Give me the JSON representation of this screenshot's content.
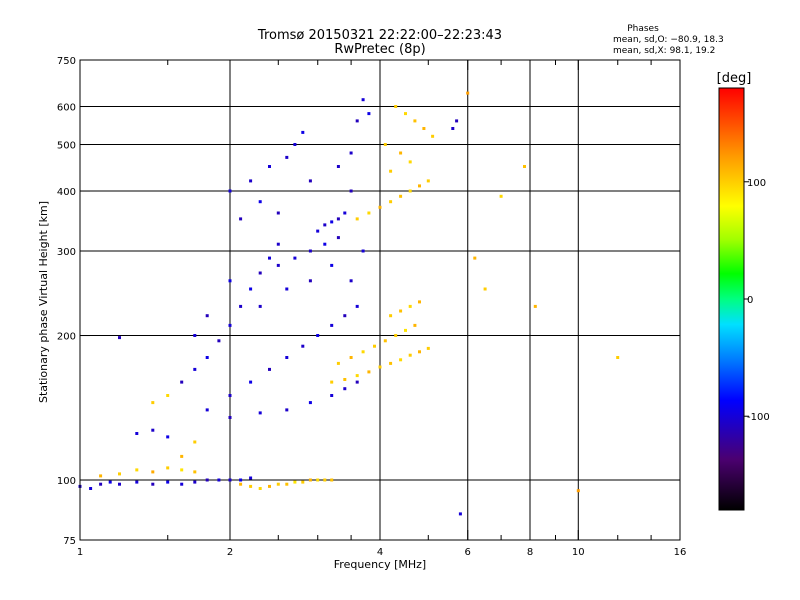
{
  "chart_data": {
    "type": "scatter",
    "title": "Tromsø 20150321 22:22:00–22:23:43",
    "subtitle": "RwPretec (8p)",
    "xlabel": "Frequency [MHz]",
    "ylabel": "Stationary phase Virtual Height [km]",
    "x_scale": "log",
    "y_scale": "log",
    "xlim": [
      1,
      16
    ],
    "ylim": [
      75,
      750
    ],
    "grid": true,
    "x_ticks": [
      1,
      2,
      4,
      6,
      8,
      10,
      16
    ],
    "x_minor_ticks": [
      1.5,
      2.5,
      3,
      3.5,
      5,
      7,
      9,
      12,
      14
    ],
    "y_ticks": [
      75,
      100,
      200,
      300,
      400,
      500,
      600,
      750
    ],
    "x_gridlines": [
      2,
      4,
      6,
      8,
      10
    ],
    "y_gridlines": [
      100,
      200,
      300,
      400,
      500,
      600
    ],
    "phases_box": {
      "title": "Phases",
      "line_o": "mean, sd,O: −80.9, 18.3",
      "line_x": "mean, sd,X: 98.1, 19.2"
    },
    "colorbar": {
      "label": "[deg]",
      "min": -180,
      "max": 180,
      "ticks": [
        100,
        0,
        -100
      ],
      "colormap": "rainbow"
    },
    "series": [
      {
        "mode": "O",
        "mean_phase": -80.9,
        "sd_phase": 18.3,
        "points": [
          [
            1.0,
            97,
            -105
          ],
          [
            1.05,
            96,
            -100
          ],
          [
            1.1,
            98,
            -110
          ],
          [
            1.15,
            99,
            -95
          ],
          [
            1.2,
            98,
            -105
          ],
          [
            1.3,
            99,
            -100
          ],
          [
            1.4,
            98,
            -110
          ],
          [
            1.5,
            99,
            -95
          ],
          [
            1.6,
            98,
            -100
          ],
          [
            1.7,
            99,
            -105
          ],
          [
            1.8,
            100,
            -110
          ],
          [
            1.9,
            100,
            -100
          ],
          [
            2.0,
            100,
            -105
          ],
          [
            2.1,
            100,
            -95
          ],
          [
            2.2,
            101,
            -100
          ],
          [
            1.2,
            198,
            -110
          ],
          [
            1.3,
            125,
            -100
          ],
          [
            1.4,
            127,
            -105
          ],
          [
            1.5,
            123,
            -95
          ],
          [
            1.6,
            160,
            -110
          ],
          [
            1.7,
            170,
            -100
          ],
          [
            1.8,
            180,
            -95
          ],
          [
            1.9,
            195,
            -110
          ],
          [
            2.0,
            210,
            -100
          ],
          [
            2.1,
            230,
            -105
          ],
          [
            2.2,
            250,
            -95
          ],
          [
            2.3,
            270,
            -110
          ],
          [
            2.4,
            290,
            -100
          ],
          [
            2.5,
            310,
            -105
          ],
          [
            1.8,
            140,
            -100
          ],
          [
            2.0,
            150,
            -105
          ],
          [
            2.2,
            160,
            -95
          ],
          [
            2.4,
            170,
            -110
          ],
          [
            2.6,
            180,
            -100
          ],
          [
            2.8,
            190,
            -105
          ],
          [
            3.0,
            200,
            -95
          ],
          [
            3.2,
            210,
            -100
          ],
          [
            3.4,
            220,
            -110
          ],
          [
            3.6,
            230,
            -100
          ],
          [
            2.0,
            135,
            -110
          ],
          [
            2.3,
            138,
            -100
          ],
          [
            2.6,
            140,
            -105
          ],
          [
            2.9,
            145,
            -95
          ],
          [
            3.2,
            150,
            -100
          ],
          [
            3.4,
            155,
            -105
          ],
          [
            3.6,
            160,
            -110
          ],
          [
            2.0,
            400,
            -100
          ],
          [
            2.1,
            350,
            -110
          ],
          [
            2.2,
            420,
            -105
          ],
          [
            2.3,
            380,
            -95
          ],
          [
            2.4,
            450,
            -100
          ],
          [
            2.5,
            360,
            -110
          ],
          [
            2.6,
            470,
            -105
          ],
          [
            2.7,
            500,
            -100
          ],
          [
            2.8,
            530,
            -95
          ],
          [
            2.9,
            420,
            -110
          ],
          [
            3.0,
            330,
            -100
          ],
          [
            3.1,
            340,
            -105
          ],
          [
            3.2,
            345,
            -95
          ],
          [
            3.3,
            350,
            -110
          ],
          [
            3.4,
            360,
            -100
          ],
          [
            3.5,
            480,
            -105
          ],
          [
            3.6,
            560,
            -110
          ],
          [
            3.7,
            620,
            -100
          ],
          [
            3.8,
            580,
            -95
          ],
          [
            3.3,
            450,
            -105
          ],
          [
            3.5,
            400,
            -110
          ],
          [
            3.7,
            300,
            -100
          ],
          [
            3.5,
            260,
            -105
          ],
          [
            3.2,
            280,
            -95
          ],
          [
            2.9,
            260,
            -110
          ],
          [
            2.6,
            250,
            -100
          ],
          [
            2.3,
            230,
            -105
          ],
          [
            2.0,
            260,
            -95
          ],
          [
            1.8,
            220,
            -110
          ],
          [
            1.7,
            200,
            -100
          ],
          [
            2.9,
            300,
            -105
          ],
          [
            3.1,
            310,
            -95
          ],
          [
            3.3,
            320,
            -110
          ],
          [
            2.7,
            290,
            -100
          ],
          [
            2.5,
            280,
            -105
          ],
          [
            5.8,
            85,
            -100
          ],
          [
            5.7,
            560,
            -110
          ],
          [
            5.6,
            540,
            -105
          ]
        ]
      },
      {
        "mode": "X",
        "mean_phase": 98.1,
        "sd_phase": 19.2,
        "points": [
          [
            1.1,
            102,
            110
          ],
          [
            1.2,
            103,
            100
          ],
          [
            1.3,
            105,
            95
          ],
          [
            1.4,
            104,
            115
          ],
          [
            1.5,
            106,
            100
          ],
          [
            1.6,
            105,
            90
          ],
          [
            1.7,
            104,
            105
          ],
          [
            2.1,
            98,
            110
          ],
          [
            2.2,
            97,
            100
          ],
          [
            2.3,
            96,
            95
          ],
          [
            2.4,
            97,
            110
          ],
          [
            2.5,
            98,
            100
          ],
          [
            2.6,
            98,
            105
          ],
          [
            2.7,
            99,
            90
          ],
          [
            2.8,
            99,
            100
          ],
          [
            2.9,
            100,
            110
          ],
          [
            3.0,
            100,
            95
          ],
          [
            3.1,
            100,
            100
          ],
          [
            3.2,
            100,
            105
          ],
          [
            1.4,
            145,
            100
          ],
          [
            1.5,
            150,
            95
          ],
          [
            1.6,
            112,
            110
          ],
          [
            1.7,
            120,
            100
          ],
          [
            3.3,
            175,
            100
          ],
          [
            3.5,
            180,
            110
          ],
          [
            3.7,
            185,
            95
          ],
          [
            3.9,
            190,
            100
          ],
          [
            4.1,
            195,
            105
          ],
          [
            4.3,
            200,
            100
          ],
          [
            4.5,
            205,
            90
          ],
          [
            4.7,
            210,
            110
          ],
          [
            3.2,
            160,
            100
          ],
          [
            3.4,
            162,
            105
          ],
          [
            3.6,
            165,
            95
          ],
          [
            3.8,
            168,
            110
          ],
          [
            4.0,
            172,
            100
          ],
          [
            4.2,
            175,
            105
          ],
          [
            4.4,
            178,
            95
          ],
          [
            4.6,
            182,
            100
          ],
          [
            4.8,
            185,
            110
          ],
          [
            5.0,
            188,
            100
          ],
          [
            3.6,
            350,
            100
          ],
          [
            3.8,
            360,
            95
          ],
          [
            4.0,
            370,
            110
          ],
          [
            4.2,
            380,
            100
          ],
          [
            4.4,
            390,
            105
          ],
          [
            4.6,
            400,
            95
          ],
          [
            4.8,
            410,
            110
          ],
          [
            5.0,
            420,
            100
          ],
          [
            4.3,
            600,
            100
          ],
          [
            4.5,
            580,
            95
          ],
          [
            4.7,
            560,
            105
          ],
          [
            4.9,
            540,
            110
          ],
          [
            5.1,
            520,
            100
          ],
          [
            4.1,
            500,
            100
          ],
          [
            4.4,
            480,
            110
          ],
          [
            4.6,
            460,
            95
          ],
          [
            4.2,
            440,
            100
          ],
          [
            4.2,
            220,
            100
          ],
          [
            4.4,
            225,
            105
          ],
          [
            4.6,
            230,
            95
          ],
          [
            4.8,
            235,
            110
          ],
          [
            6.2,
            290,
            110
          ],
          [
            6.5,
            250,
            100
          ],
          [
            7.0,
            390,
            95
          ],
          [
            7.8,
            450,
            105
          ],
          [
            6.0,
            640,
            120
          ],
          [
            8.2,
            230,
            110
          ],
          [
            12.0,
            180,
            100
          ],
          [
            10.0,
            95,
            120
          ]
        ]
      }
    ]
  }
}
